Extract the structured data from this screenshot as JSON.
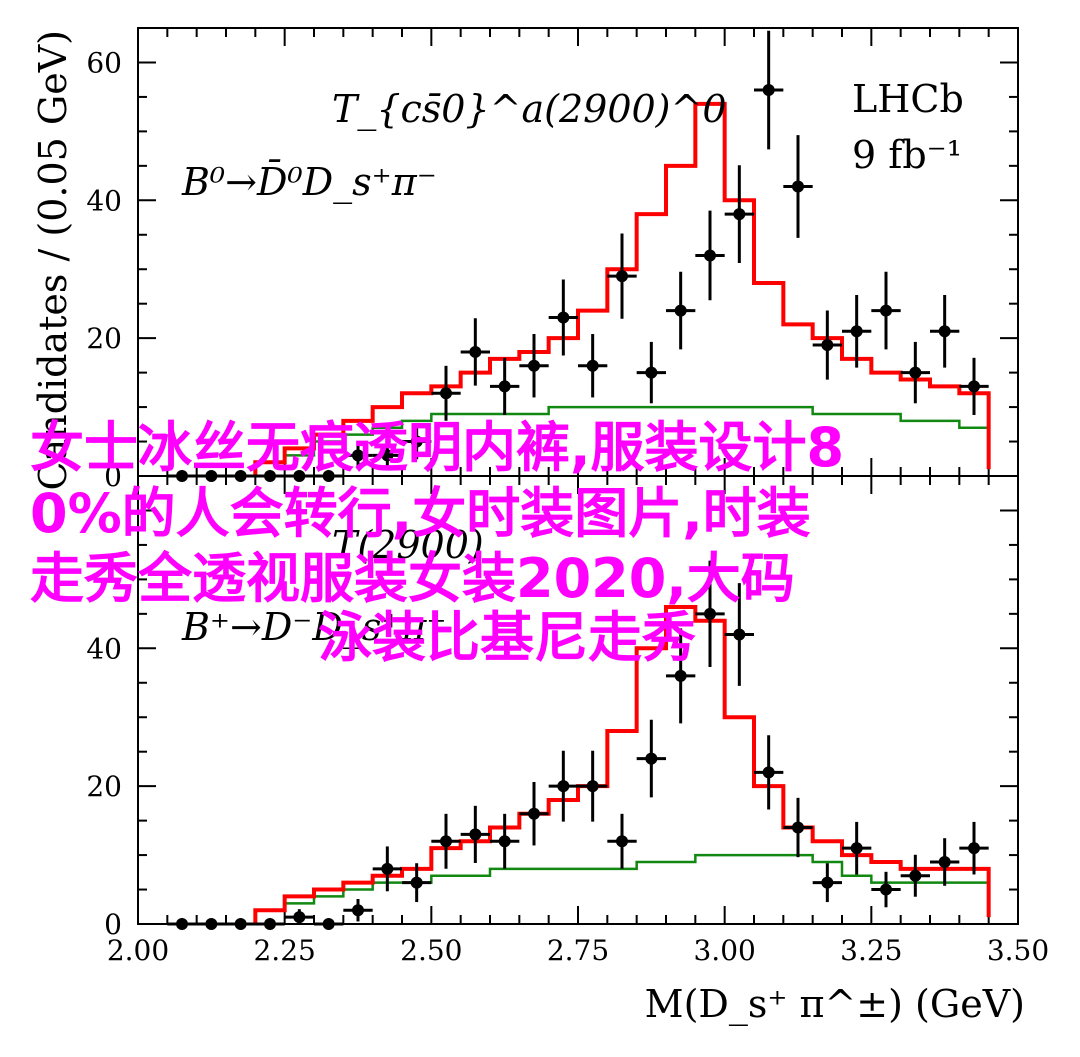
{
  "chart_data": {
    "type": "histogram-fit",
    "experiment_label": "LHCb",
    "luminosity_label": "9 fb⁻¹",
    "xlabel": "M(D_s⁺ π^±) (GeV)",
    "ylabel": "Candidates / (0.05 GeV)",
    "xlim": [
      2.0,
      3.5
    ],
    "x_ticks": [
      "2.00",
      "2.25",
      "2.50",
      "2.75",
      "3.00",
      "3.25",
      "3.50"
    ],
    "series_colors": {
      "data": "#000000",
      "total_fit": "#ff0000",
      "background": "#118811"
    },
    "panels": [
      {
        "resonance_label": "T_{cs̄0}^a(2900)^0",
        "decay_label": "B⁰→D̄⁰D_s⁺π⁻",
        "ylim": [
          0,
          65
        ],
        "y_ticks": [
          "0",
          "20",
          "40",
          "60"
        ],
        "data_x": [
          2.075,
          2.125,
          2.175,
          2.225,
          2.275,
          2.325,
          2.375,
          2.425,
          2.475,
          2.525,
          2.575,
          2.625,
          2.675,
          2.725,
          2.775,
          2.825,
          2.875,
          2.925,
          2.975,
          3.025,
          3.075,
          3.125,
          3.175,
          3.225,
          3.275,
          3.325,
          3.375,
          3.425
        ],
        "data_y": [
          0,
          0,
          0,
          0,
          0,
          0,
          3,
          3,
          5,
          12,
          18,
          13,
          16,
          23,
          16,
          29,
          15,
          24,
          32,
          38,
          56,
          42,
          19,
          21,
          24,
          15,
          21,
          13
        ],
        "fit_edges": [
          2.2,
          2.25,
          2.3,
          2.35,
          2.4,
          2.45,
          2.5,
          2.55,
          2.6,
          2.65,
          2.7,
          2.75,
          2.8,
          2.85,
          2.9,
          2.95,
          3.0,
          3.05,
          3.1,
          3.15,
          3.2,
          3.25,
          3.3,
          3.35,
          3.4,
          3.45
        ],
        "fit_values": [
          2,
          4,
          6,
          8,
          10,
          12,
          13,
          15,
          17,
          18,
          20,
          24,
          30,
          38,
          45,
          54,
          40,
          28,
          22,
          20,
          17,
          15,
          14,
          13,
          12,
          1
        ],
        "bkg_values": [
          2,
          3,
          5,
          6,
          7,
          8,
          9,
          9,
          9,
          9,
          10,
          10,
          10,
          10,
          10,
          10,
          10,
          10,
          10,
          9,
          9,
          9,
          8,
          8,
          7,
          1
        ]
      },
      {
        "resonance_label": "T(2900)",
        "decay_label": "B⁺→D⁻D_s⁺π⁺",
        "ylim": [
          0,
          65
        ],
        "y_ticks": [
          "0",
          "20",
          "40"
        ],
        "data_x": [
          2.075,
          2.125,
          2.175,
          2.225,
          2.275,
          2.325,
          2.375,
          2.425,
          2.475,
          2.525,
          2.575,
          2.625,
          2.675,
          2.725,
          2.775,
          2.825,
          2.875,
          2.925,
          2.975,
          3.025,
          3.075,
          3.125,
          3.175,
          3.225,
          3.275,
          3.325,
          3.375,
          3.425
        ],
        "data_y": [
          0,
          0,
          0,
          0,
          1,
          0,
          2,
          8,
          6,
          12,
          13,
          12,
          16,
          20,
          20,
          12,
          24,
          36,
          45,
          42,
          22,
          14,
          6,
          11,
          5,
          7,
          9,
          11
        ],
        "fit_edges": [
          2.2,
          2.25,
          2.3,
          2.35,
          2.4,
          2.45,
          2.5,
          2.55,
          2.6,
          2.65,
          2.7,
          2.75,
          2.8,
          2.85,
          2.9,
          2.95,
          3.0,
          3.05,
          3.1,
          3.15,
          3.2,
          3.25,
          3.3,
          3.35,
          3.4,
          3.45
        ],
        "fit_values": [
          2,
          4,
          5,
          6,
          7,
          8,
          11,
          12,
          14,
          16,
          18,
          20,
          28,
          40,
          46,
          44,
          30,
          20,
          14,
          12,
          10,
          9,
          8,
          8,
          8,
          1
        ],
        "bkg_values": [
          2,
          3,
          4,
          5,
          6,
          6,
          7,
          7,
          8,
          8,
          8,
          8,
          8,
          9,
          9,
          10,
          10,
          10,
          10,
          9,
          7,
          6,
          6,
          6,
          6,
          1
        ]
      }
    ]
  },
  "overlay_text": [
    "女士冰丝无痕透明内裤,服装设计8",
    "0%的人会转行,女时装图片,时装",
    "走秀全透视服装女装2020,大码",
    "泳装比基尼走秀"
  ]
}
